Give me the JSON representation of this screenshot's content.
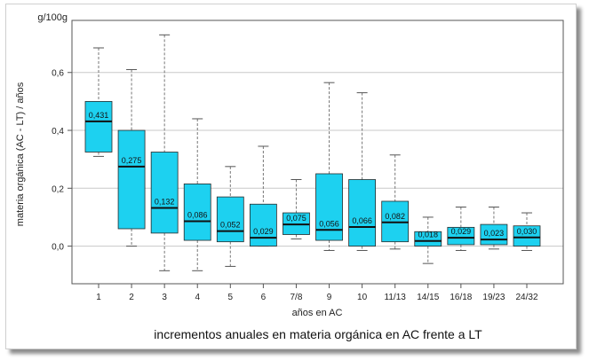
{
  "chart_data": {
    "type": "boxplot",
    "title": "incrementos anuales en materia orgánica en AC frente a LT",
    "xlabel": "años en AC",
    "ylabel": "materia orgánica (AC - LT) / años",
    "unit": "g/100g",
    "ylim": [
      -0.13,
      0.78
    ],
    "yticks": [
      0.0,
      0.2,
      0.4,
      0.6
    ],
    "ytick_labels": [
      "0,0",
      "0,2",
      "0,4",
      "0,6"
    ],
    "grid": "horizontal",
    "box_color": "#1dd1f0",
    "categories": [
      "1",
      "2",
      "3",
      "4",
      "5",
      "6",
      "7/8",
      "9",
      "10",
      "11/13",
      "14/15",
      "16/18",
      "19/23",
      "24/32"
    ],
    "median_labels": [
      "0,431",
      "0,275",
      "0,132",
      "0,086",
      "0,052",
      "0,029",
      "0,075",
      "0,056",
      "0,066",
      "0,082",
      "0,018",
      "0,029",
      "0,023",
      "0,030"
    ],
    "boxes": [
      {
        "min": 0.31,
        "q1": 0.325,
        "median": 0.431,
        "q3": 0.5,
        "max": 0.685
      },
      {
        "min": 0.0,
        "q1": 0.06,
        "median": 0.275,
        "q3": 0.4,
        "max": 0.61
      },
      {
        "min": -0.085,
        "q1": 0.045,
        "median": 0.132,
        "q3": 0.325,
        "max": 0.73
      },
      {
        "min": -0.085,
        "q1": 0.02,
        "median": 0.086,
        "q3": 0.215,
        "max": 0.44
      },
      {
        "min": -0.07,
        "q1": 0.015,
        "median": 0.052,
        "q3": 0.17,
        "max": 0.275
      },
      {
        "min": 0.0,
        "q1": 0.0,
        "median": 0.029,
        "q3": 0.145,
        "max": 0.345
      },
      {
        "min": 0.025,
        "q1": 0.04,
        "median": 0.075,
        "q3": 0.115,
        "max": 0.23
      },
      {
        "min": -0.015,
        "q1": 0.02,
        "median": 0.056,
        "q3": 0.25,
        "max": 0.565
      },
      {
        "min": -0.015,
        "q1": 0.0,
        "median": 0.066,
        "q3": 0.23,
        "max": 0.53
      },
      {
        "min": -0.01,
        "q1": 0.015,
        "median": 0.082,
        "q3": 0.155,
        "max": 0.315
      },
      {
        "min": -0.06,
        "q1": 0.0,
        "median": 0.018,
        "q3": 0.05,
        "max": 0.1
      },
      {
        "min": -0.015,
        "q1": 0.005,
        "median": 0.029,
        "q3": 0.065,
        "max": 0.135
      },
      {
        "min": -0.01,
        "q1": 0.005,
        "median": 0.023,
        "q3": 0.075,
        "max": 0.135
      },
      {
        "min": -0.015,
        "q1": 0.0,
        "median": 0.03,
        "q3": 0.07,
        "max": 0.115
      }
    ]
  }
}
